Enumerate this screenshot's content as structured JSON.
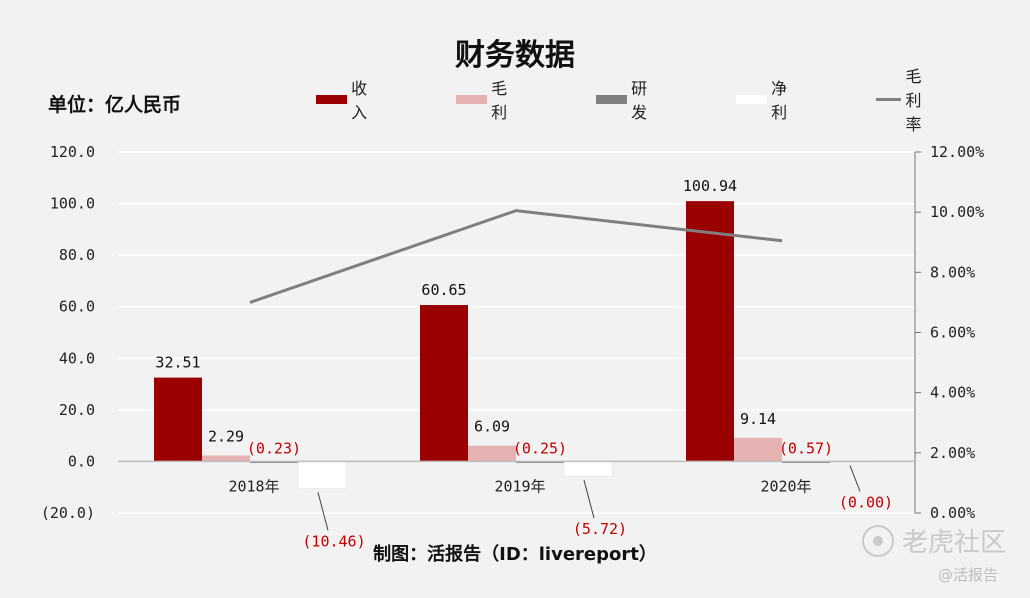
{
  "page": {
    "title": "财务数据",
    "unit_label": "单位：亿人民币",
    "credit": "制图：活报告（ID：livereport）",
    "watermark_main": "老虎社区",
    "watermark_sub": "@活报告"
  },
  "chart_data": {
    "type": "bar",
    "title": "财务数据",
    "categories": [
      "2018年",
      "2019年",
      "2020年"
    ],
    "series": [
      {
        "name": "收入",
        "type": "bar",
        "color": "#9b0000",
        "values": [
          32.51,
          60.65,
          100.94
        ],
        "labels": [
          "32.51",
          "60.65",
          "100.94"
        ],
        "label_color": "#111111"
      },
      {
        "name": "毛利",
        "type": "bar",
        "color": "#e6b1b1",
        "values": [
          2.29,
          6.09,
          9.14
        ],
        "labels": [
          "2.29",
          "6.09",
          "9.14"
        ],
        "label_color": "#111111"
      },
      {
        "name": "研发",
        "type": "bar",
        "color": "#808080",
        "values": [
          -0.23,
          -0.25,
          -0.57
        ],
        "labels": [
          "(0.23)",
          "(0.25)",
          "(0.57)"
        ],
        "label_color": "#c00000"
      },
      {
        "name": "净利",
        "type": "bar",
        "color": "#ffffff",
        "values": [
          -10.46,
          -5.72,
          0.0
        ],
        "labels": [
          "(10.46)",
          "(5.72)",
          "(0.00)"
        ],
        "label_color": "#c00000"
      },
      {
        "name": "毛利率",
        "type": "line",
        "axis": "right",
        "color": "#7f7f7f",
        "values": [
          7.0,
          10.05,
          9.05
        ]
      }
    ],
    "y_left": {
      "min": -20,
      "max": 120,
      "ticks": [
        -20,
        0,
        20,
        40,
        60,
        80,
        100,
        120
      ],
      "tick_labels": [
        "(20.0)",
        "0.0",
        "20.0",
        "40.0",
        "60.0",
        "80.0",
        "100.0",
        "120.0"
      ],
      "negative_tick_color": "#c00000"
    },
    "y_right": {
      "min": 0,
      "max": 12,
      "ticks": [
        0,
        2,
        4,
        6,
        8,
        10,
        12
      ],
      "tick_labels": [
        "0.00%",
        "2.00%",
        "4.00%",
        "6.00%",
        "8.00%",
        "10.00%",
        "12.00%"
      ]
    },
    "grid": true,
    "legend": "top"
  }
}
